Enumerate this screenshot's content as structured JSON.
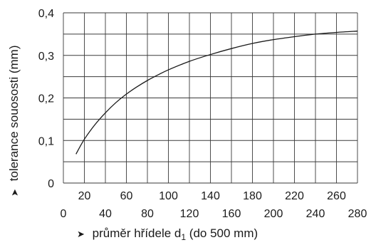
{
  "chart_data": {
    "type": "line",
    "xlabel_prefix": "průměr hřídele d",
    "xlabel_subscript": "1",
    "xlabel_suffix": " (do 500 mm)",
    "ylabel": "tolerance souososti (mm)",
    "arrow_symbol": "➤",
    "xlim": [
      0,
      280
    ],
    "ylim": [
      0,
      0.4
    ],
    "x_ticks_lower": [
      "0",
      "40",
      "80",
      "120",
      "160",
      "200",
      "240",
      "280"
    ],
    "x_ticks_upper": [
      "20",
      "60",
      "100",
      "140",
      "180",
      "220",
      "260"
    ],
    "y_ticks": [
      "0",
      "0,1",
      "0,2",
      "0,3",
      "0,4"
    ],
    "grid": true,
    "series": [
      {
        "color": "#1a1a1a",
        "x": [
          12,
          20,
          30,
          40,
          50,
          60,
          70,
          80,
          90,
          100,
          120,
          140,
          160,
          180,
          200,
          220,
          240,
          260,
          280
        ],
        "y": [
          0.068,
          0.103,
          0.137,
          0.165,
          0.189,
          0.209,
          0.226,
          0.241,
          0.254,
          0.266,
          0.286,
          0.302,
          0.316,
          0.328,
          0.337,
          0.344,
          0.35,
          0.354,
          0.357
        ]
      }
    ]
  }
}
